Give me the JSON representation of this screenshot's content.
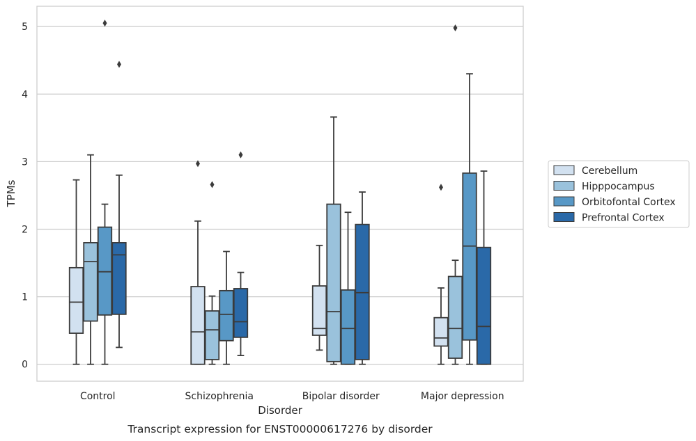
{
  "chart_data": {
    "type": "box",
    "title": "Transcript expression for ENST00000617276 by disorder",
    "xlabel": "Disorder",
    "ylabel": "TPMs",
    "ylim": [
      -0.25,
      5.3
    ],
    "yticks": [
      0,
      1,
      2,
      3,
      4,
      5
    ],
    "categories": [
      "Control",
      "Schizophrenia",
      "Bipolar disorder",
      "Major depression"
    ],
    "grid": "horizontal",
    "legend_position": "right",
    "series": [
      {
        "name": "Cerebellum",
        "color": "#d2e1f0",
        "boxes": [
          {
            "whislo": 0.0,
            "q1": 0.46,
            "med": 0.92,
            "q3": 1.43,
            "whishi": 2.73,
            "fliers": []
          },
          {
            "whislo": 0.0,
            "q1": 0.0,
            "med": 0.48,
            "q3": 1.15,
            "whishi": 2.12,
            "fliers": [
              2.97
            ]
          },
          {
            "whislo": 0.21,
            "q1": 0.43,
            "med": 0.53,
            "q3": 1.16,
            "whishi": 1.76,
            "fliers": []
          },
          {
            "whislo": 0.0,
            "q1": 0.27,
            "med": 0.39,
            "q3": 0.69,
            "whishi": 1.13,
            "fliers": [
              2.62
            ]
          }
        ]
      },
      {
        "name": "Hipppocampus",
        "color": "#9ac2dc",
        "boxes": [
          {
            "whislo": 0.0,
            "q1": 0.64,
            "med": 1.52,
            "q3": 1.8,
            "whishi": 3.1,
            "fliers": []
          },
          {
            "whislo": 0.0,
            "q1": 0.07,
            "med": 0.51,
            "q3": 0.79,
            "whishi": 1.01,
            "fliers": [
              2.66
            ]
          },
          {
            "whislo": 0.0,
            "q1": 0.04,
            "med": 0.78,
            "q3": 2.37,
            "whishi": 3.66,
            "fliers": []
          },
          {
            "whislo": 0.0,
            "q1": 0.09,
            "med": 0.53,
            "q3": 1.3,
            "whishi": 1.54,
            "fliers": [
              4.98
            ]
          }
        ]
      },
      {
        "name": "Orbitofontal Cortex",
        "color": "#5898c6",
        "boxes": [
          {
            "whislo": 0.0,
            "q1": 0.73,
            "med": 1.37,
            "q3": 2.03,
            "whishi": 2.37,
            "fliers": [
              5.05
            ]
          },
          {
            "whislo": 0.0,
            "q1": 0.35,
            "med": 0.74,
            "q3": 1.09,
            "whishi": 1.67,
            "fliers": []
          },
          {
            "whislo": 0.0,
            "q1": 0.0,
            "med": 0.53,
            "q3": 1.1,
            "whishi": 2.25,
            "fliers": []
          },
          {
            "whislo": 0.0,
            "q1": 0.36,
            "med": 1.75,
            "q3": 2.83,
            "whishi": 4.3,
            "fliers": []
          }
        ]
      },
      {
        "name": "Prefrontal Cortex",
        "color": "#2a69a8",
        "boxes": [
          {
            "whislo": 0.25,
            "q1": 0.74,
            "med": 1.62,
            "q3": 1.8,
            "whishi": 2.8,
            "fliers": [
              4.44
            ]
          },
          {
            "whislo": 0.13,
            "q1": 0.4,
            "med": 0.63,
            "q3": 1.12,
            "whishi": 1.36,
            "fliers": [
              3.1
            ]
          },
          {
            "whislo": 0.0,
            "q1": 0.07,
            "med": 1.06,
            "q3": 2.07,
            "whishi": 2.55,
            "fliers": []
          },
          {
            "whislo": 0.0,
            "q1": 0.0,
            "med": 0.56,
            "q3": 1.73,
            "whishi": 2.86,
            "fliers": []
          }
        ]
      }
    ]
  }
}
